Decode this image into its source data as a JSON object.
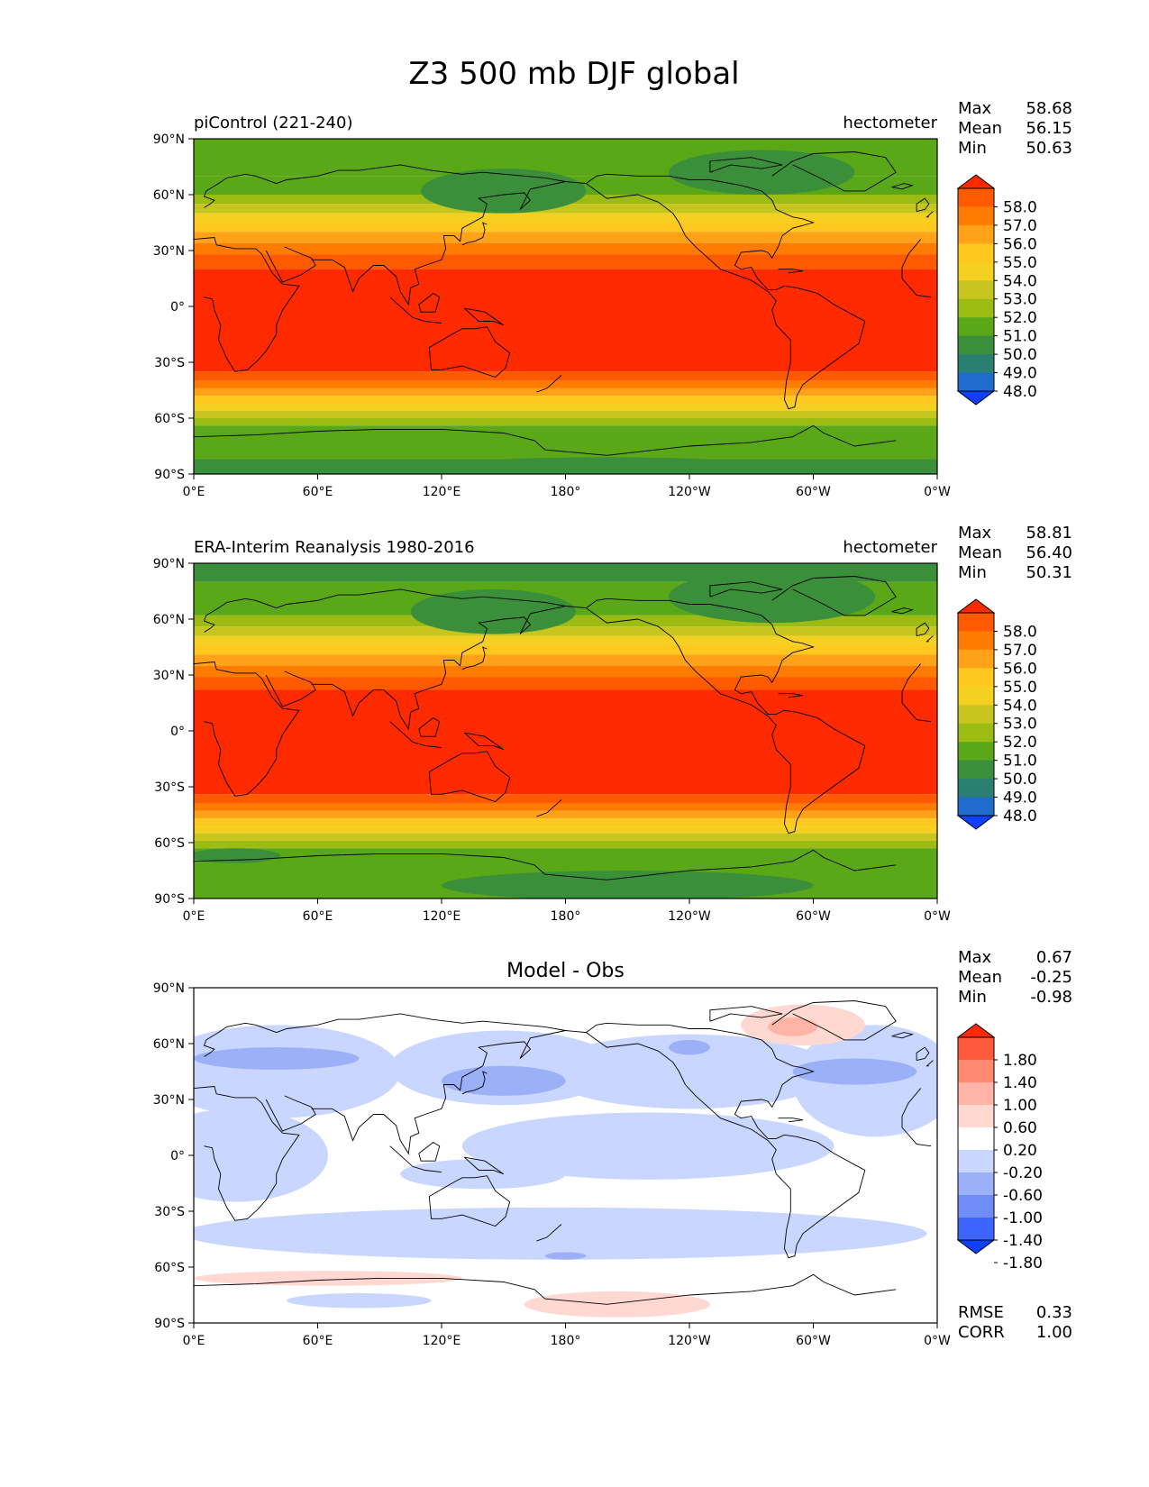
{
  "figure": {
    "title": "Z3 500 mb DJF global"
  },
  "axes": {
    "lat_labels": [
      "90°N",
      "60°N",
      "30°N",
      "0°",
      "30°S",
      "60°S",
      "90°S"
    ],
    "lon_labels": [
      "0°E",
      "60°E",
      "120°E",
      "180°",
      "120°W",
      "60°W",
      "0°W"
    ]
  },
  "panels": [
    {
      "left_title": "piControl (221-240)",
      "right_title": "hectometer",
      "center_title": "",
      "stats": [
        {
          "label": "Max",
          "value": "58.68"
        },
        {
          "label": "Mean",
          "value": "56.15"
        },
        {
          "label": "Min",
          "value": "50.63"
        }
      ],
      "colorbar": {
        "labels": [
          "58.0",
          "57.0",
          "56.0",
          "55.0",
          "54.0",
          "53.0",
          "52.0",
          "51.0",
          "50.0",
          "49.0",
          "48.0"
        ],
        "colors": [
          "#ff2a00",
          "#ff5a00",
          "#ff7c00",
          "#ffa218",
          "#ffc81e",
          "#f5d020",
          "#c7c61f",
          "#9cbc14",
          "#5aa817",
          "#3c8f3a",
          "#2a8070",
          "#1f6ccd",
          "#0f3fff"
        ]
      },
      "field": {
        "kind": "absolute",
        "bands": [
          {
            "lat_from": 90,
            "lat_to": 70,
            "color": "#5aa817"
          },
          {
            "lat_from": 70,
            "lat_to": 60,
            "color": "#5aa817"
          },
          {
            "lat_from": 60,
            "lat_to": 55,
            "color": "#9cbc14"
          },
          {
            "lat_from": 55,
            "lat_to": 50,
            "color": "#c7c61f"
          },
          {
            "lat_from": 50,
            "lat_to": 45,
            "color": "#f5d020"
          },
          {
            "lat_from": 45,
            "lat_to": 40,
            "color": "#ffc81e"
          },
          {
            "lat_from": 40,
            "lat_to": 34,
            "color": "#ffa218"
          },
          {
            "lat_from": 34,
            "lat_to": 28,
            "color": "#ff7c00"
          },
          {
            "lat_from": 28,
            "lat_to": 20,
            "color": "#ff5a00"
          },
          {
            "lat_from": 20,
            "lat_to": -35,
            "color": "#ff2a00"
          },
          {
            "lat_from": -35,
            "lat_to": -40,
            "color": "#ff5a00"
          },
          {
            "lat_from": -40,
            "lat_to": -44,
            "color": "#ff7c00"
          },
          {
            "lat_from": -44,
            "lat_to": -48,
            "color": "#ffa218"
          },
          {
            "lat_from": -48,
            "lat_to": -52,
            "color": "#ffc81e"
          },
          {
            "lat_from": -52,
            "lat_to": -56,
            "color": "#f5d020"
          },
          {
            "lat_from": -56,
            "lat_to": -60,
            "color": "#c7c61f"
          },
          {
            "lat_from": -60,
            "lat_to": -64,
            "color": "#9cbc14"
          },
          {
            "lat_from": -64,
            "lat_to": -82,
            "color": "#5aa817"
          },
          {
            "lat_from": -82,
            "lat_to": -90,
            "color": "#3c8f3a"
          }
        ],
        "blobs": [
          {
            "lon": 150,
            "lat": 62,
            "rlon": 40,
            "rlat": 12,
            "color": "#3c8f3a"
          },
          {
            "lon": 275,
            "lat": 72,
            "rlon": 45,
            "rlat": 12,
            "color": "#3c8f3a"
          },
          {
            "lon": 200,
            "lat": -86,
            "rlon": 80,
            "rlat": 5,
            "color": "#3c8f3a"
          }
        ]
      }
    },
    {
      "left_title": "ERA-Interim Reanalysis 1980-2016",
      "right_title": "hectometer",
      "center_title": "",
      "stats": [
        {
          "label": "Max",
          "value": "58.81"
        },
        {
          "label": "Mean",
          "value": "56.40"
        },
        {
          "label": "Min",
          "value": "50.31"
        }
      ],
      "colorbar": {
        "labels": [
          "58.0",
          "57.0",
          "56.0",
          "55.0",
          "54.0",
          "53.0",
          "52.0",
          "51.0",
          "50.0",
          "49.0",
          "48.0"
        ],
        "colors": [
          "#ff2a00",
          "#ff5a00",
          "#ff7c00",
          "#ffa218",
          "#ffc81e",
          "#f5d020",
          "#c7c61f",
          "#9cbc14",
          "#5aa817",
          "#3c8f3a",
          "#2a8070",
          "#1f6ccd",
          "#0f3fff"
        ]
      },
      "field": {
        "kind": "absolute",
        "bands": [
          {
            "lat_from": 90,
            "lat_to": 80,
            "color": "#3c8f3a"
          },
          {
            "lat_from": 80,
            "lat_to": 62,
            "color": "#5aa817"
          },
          {
            "lat_from": 62,
            "lat_to": 56,
            "color": "#9cbc14"
          },
          {
            "lat_from": 56,
            "lat_to": 51,
            "color": "#c7c61f"
          },
          {
            "lat_from": 51,
            "lat_to": 46,
            "color": "#f5d020"
          },
          {
            "lat_from": 46,
            "lat_to": 41,
            "color": "#ffc81e"
          },
          {
            "lat_from": 41,
            "lat_to": 35,
            "color": "#ffa218"
          },
          {
            "lat_from": 35,
            "lat_to": 29,
            "color": "#ff7c00"
          },
          {
            "lat_from": 29,
            "lat_to": 22,
            "color": "#ff5a00"
          },
          {
            "lat_from": 22,
            "lat_to": -34,
            "color": "#ff2a00"
          },
          {
            "lat_from": -34,
            "lat_to": -39,
            "color": "#ff5a00"
          },
          {
            "lat_from": -39,
            "lat_to": -43,
            "color": "#ff7c00"
          },
          {
            "lat_from": -43,
            "lat_to": -47,
            "color": "#ffa218"
          },
          {
            "lat_from": -47,
            "lat_to": -51,
            "color": "#ffc81e"
          },
          {
            "lat_from": -51,
            "lat_to": -55,
            "color": "#f5d020"
          },
          {
            "lat_from": -55,
            "lat_to": -59,
            "color": "#c7c61f"
          },
          {
            "lat_from": -59,
            "lat_to": -63,
            "color": "#9cbc14"
          },
          {
            "lat_from": -63,
            "lat_to": -90,
            "color": "#5aa817"
          }
        ],
        "blobs": [
          {
            "lon": 145,
            "lat": 64,
            "rlon": 40,
            "rlat": 12,
            "color": "#3c8f3a"
          },
          {
            "lon": 280,
            "lat": 72,
            "rlon": 50,
            "rlat": 14,
            "color": "#3c8f3a"
          },
          {
            "lon": 20,
            "lat": -67,
            "rlon": 22,
            "rlat": 4,
            "color": "#3c8f3a"
          },
          {
            "lon": 210,
            "lat": -83,
            "rlon": 90,
            "rlat": 8,
            "color": "#3c8f3a"
          }
        ]
      }
    },
    {
      "left_title": "",
      "right_title": "",
      "center_title": "Model - Obs",
      "stats": [
        {
          "label": "Max",
          "value": "0.67"
        },
        {
          "label": "Mean",
          "value": "-0.25"
        },
        {
          "label": "Min",
          "value": "-0.98"
        }
      ],
      "extra_stats": [
        {
          "label": "RMSE",
          "value": "0.33"
        },
        {
          "label": "CORR",
          "value": "1.00"
        }
      ],
      "colorbar": {
        "labels": [
          "1.80",
          "1.40",
          "1.00",
          "0.60",
          "0.20",
          "-0.20",
          "-0.60",
          "-1.00",
          "-1.40",
          "-1.80"
        ],
        "colors": [
          "#ff2a0a",
          "#ff5a3c",
          "#ff8a70",
          "#ffb4a6",
          "#ffd8d2",
          "#ffffff",
          "#c9d6ff",
          "#9bb0f7",
          "#6f8cf7",
          "#3d64ff",
          "#0f3fff"
        ]
      },
      "field": {
        "kind": "difference",
        "background": "#ffffff",
        "blobs": [
          {
            "lon": 40,
            "lat": 45,
            "rlon": 60,
            "rlat": 25,
            "color": "#c9d6ff"
          },
          {
            "lon": 150,
            "lat": 47,
            "rlon": 55,
            "rlat": 20,
            "color": "#c9d6ff"
          },
          {
            "lon": 240,
            "lat": 45,
            "rlon": 70,
            "rlat": 20,
            "color": "#c9d6ff"
          },
          {
            "lon": 330,
            "lat": 40,
            "rlon": 40,
            "rlat": 30,
            "color": "#c9d6ff"
          },
          {
            "lon": 20,
            "lat": 0,
            "rlon": 45,
            "rlat": 25,
            "color": "#c9d6ff"
          },
          {
            "lon": 220,
            "lat": 5,
            "rlon": 90,
            "rlat": 18,
            "color": "#c9d6ff"
          },
          {
            "lon": 175,
            "lat": -42,
            "rlon": 180,
            "rlat": 14,
            "color": "#c9d6ff"
          },
          {
            "lon": 140,
            "lat": -10,
            "rlon": 40,
            "rlat": 8,
            "color": "#c9d6ff"
          },
          {
            "lon": 80,
            "lat": -78,
            "rlon": 35,
            "rlat": 4,
            "color": "#c9d6ff"
          },
          {
            "lon": 40,
            "lat": 52,
            "rlon": 40,
            "rlat": 6,
            "color": "#9bb0f7"
          },
          {
            "lon": 150,
            "lat": 40,
            "rlon": 30,
            "rlat": 8,
            "color": "#9bb0f7"
          },
          {
            "lon": 320,
            "lat": 45,
            "rlon": 30,
            "rlat": 7,
            "color": "#9bb0f7"
          },
          {
            "lon": 240,
            "lat": 58,
            "rlon": 10,
            "rlat": 4,
            "color": "#9bb0f7"
          },
          {
            "lon": 180,
            "lat": -54,
            "rlon": 10,
            "rlat": 2,
            "color": "#9bb0f7"
          },
          {
            "lon": 65,
            "lat": -66,
            "rlon": 65,
            "rlat": 4,
            "color": "#ffd8d2"
          },
          {
            "lon": 205,
            "lat": -80,
            "rlon": 45,
            "rlat": 7,
            "color": "#ffd8d2"
          },
          {
            "lon": 295,
            "lat": 70,
            "rlon": 30,
            "rlat": 11,
            "color": "#ffd8d2"
          },
          {
            "lon": 290,
            "lat": 69,
            "rlon": 12,
            "rlat": 5,
            "color": "#ffb4a6"
          }
        ]
      }
    }
  ]
}
